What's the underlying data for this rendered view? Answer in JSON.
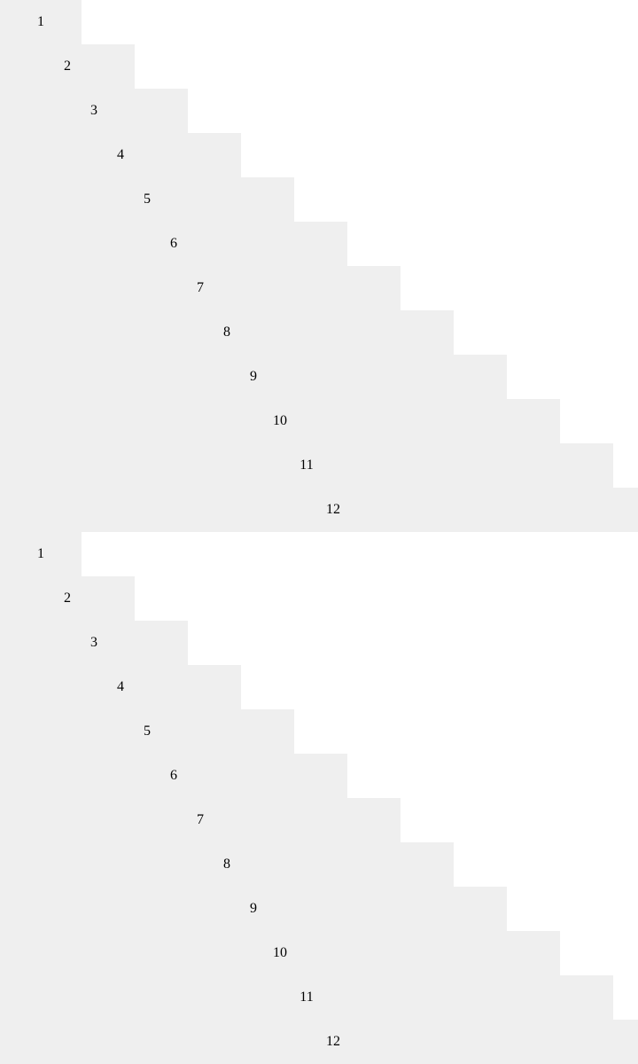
{
  "colors": {
    "step_fill": "#efefef",
    "background": "#ffffff",
    "text": "#000000"
  },
  "blocks": [
    {
      "steps": [
        {
          "label": "1"
        },
        {
          "label": "2"
        },
        {
          "label": "3"
        },
        {
          "label": "4"
        },
        {
          "label": "5"
        },
        {
          "label": "6"
        },
        {
          "label": "7"
        },
        {
          "label": "8"
        },
        {
          "label": "9"
        },
        {
          "label": "10"
        },
        {
          "label": "11"
        },
        {
          "label": "12"
        }
      ]
    },
    {
      "steps": [
        {
          "label": "1"
        },
        {
          "label": "2"
        },
        {
          "label": "3"
        },
        {
          "label": "4"
        },
        {
          "label": "5"
        },
        {
          "label": "6"
        },
        {
          "label": "7"
        },
        {
          "label": "8"
        },
        {
          "label": "9"
        },
        {
          "label": "10"
        },
        {
          "label": "11"
        },
        {
          "label": "12"
        }
      ]
    }
  ]
}
